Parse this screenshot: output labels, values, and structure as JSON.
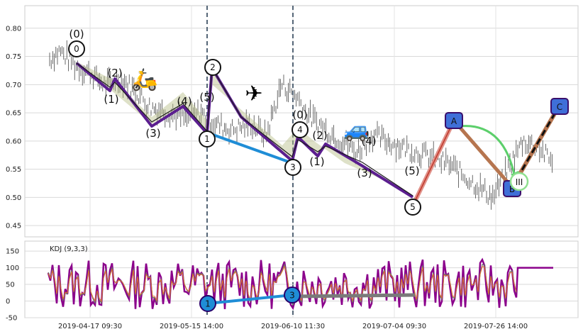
{
  "chart_data": {
    "type": "line",
    "main_panel": {
      "ylim": [
        0.43,
        0.84
      ],
      "y_ticks": [
        "0.45",
        "0.50",
        "0.55",
        "0.60",
        "0.65",
        "0.70",
        "0.75",
        "0.80"
      ],
      "grid": true,
      "price_bars": [
        {
          "x": 0.0,
          "y": 0.745
        },
        {
          "x": 0.02,
          "y": 0.76
        },
        {
          "x": 0.05,
          "y": 0.735
        },
        {
          "x": 0.08,
          "y": 0.72
        },
        {
          "x": 0.11,
          "y": 0.7
        },
        {
          "x": 0.14,
          "y": 0.71
        },
        {
          "x": 0.17,
          "y": 0.69
        },
        {
          "x": 0.2,
          "y": 0.66
        },
        {
          "x": 0.24,
          "y": 0.65
        },
        {
          "x": 0.27,
          "y": 0.64
        },
        {
          "x": 0.3,
          "y": 0.65
        },
        {
          "x": 0.33,
          "y": 0.63
        },
        {
          "x": 0.36,
          "y": 0.62
        },
        {
          "x": 0.4,
          "y": 0.63
        },
        {
          "x": 0.43,
          "y": 0.61
        },
        {
          "x": 0.46,
          "y": 0.7
        },
        {
          "x": 0.49,
          "y": 0.68
        },
        {
          "x": 0.52,
          "y": 0.64
        },
        {
          "x": 0.55,
          "y": 0.62
        },
        {
          "x": 0.58,
          "y": 0.6
        },
        {
          "x": 0.61,
          "y": 0.58
        },
        {
          "x": 0.64,
          "y": 0.61
        },
        {
          "x": 0.67,
          "y": 0.6
        },
        {
          "x": 0.7,
          "y": 0.59
        },
        {
          "x": 0.73,
          "y": 0.58
        },
        {
          "x": 0.76,
          "y": 0.57
        },
        {
          "x": 0.79,
          "y": 0.56
        },
        {
          "x": 0.82,
          "y": 0.54
        },
        {
          "x": 0.85,
          "y": 0.52
        },
        {
          "x": 0.88,
          "y": 0.5
        },
        {
          "x": 0.91,
          "y": 0.55
        },
        {
          "x": 0.94,
          "y": 0.6
        },
        {
          "x": 0.97,
          "y": 0.59
        },
        {
          "x": 1.0,
          "y": 0.56
        }
      ],
      "wave_markers": [
        {
          "label": "0",
          "x": 0.0,
          "y": 0.766,
          "top_label": "(0)"
        },
        {
          "label": "1",
          "x": 0.3,
          "y": 0.609
        },
        {
          "label": "2",
          "x": 0.31,
          "y": 0.733
        },
        {
          "label": "3",
          "x": 0.49,
          "y": 0.558
        },
        {
          "label": "4",
          "x": 0.505,
          "y": 0.623,
          "top_label": "(0)"
        },
        {
          "label": "5",
          "x": 0.74,
          "y": 0.488
        }
      ],
      "sub_wave_labels": [
        {
          "label": "(2)",
          "x": 0.08,
          "y": 0.71
        },
        {
          "label": "(1)",
          "x": 0.07,
          "y": 0.678
        },
        {
          "label": "(3)",
          "x": 0.155,
          "y": 0.613
        },
        {
          "label": "(4)",
          "x": 0.23,
          "y": 0.66
        },
        {
          "label": "(5)",
          "x": 0.275,
          "y": 0.68
        },
        {
          "label": "(2)",
          "x": 0.55,
          "y": 0.61
        },
        {
          "label": "(1)",
          "x": 0.535,
          "y": 0.578
        },
        {
          "label": "(4)",
          "x": 0.645,
          "y": 0.6
        },
        {
          "label": "(3)",
          "x": 0.63,
          "y": 0.548
        },
        {
          "label": "(5)",
          "x": 0.735,
          "y": 0.545
        }
      ],
      "abc_markers": [
        {
          "label": "A",
          "x": 0.815,
          "y": 0.638
        },
        {
          "label": "B",
          "x": 0.9,
          "y": 0.52
        },
        {
          "label": "C",
          "x": 0.985,
          "y": 0.665
        }
      ],
      "roman_marker": {
        "label": "III",
        "x": 0.9,
        "y": 0.533
      },
      "emojis": [
        {
          "glyph": "🛵",
          "x": 0.14,
          "y": 0.71
        },
        {
          "glyph": "✈",
          "x": 0.42,
          "y": 0.688
        },
        {
          "glyph": "🚙",
          "x": 0.63,
          "y": 0.628
        }
      ]
    },
    "kdj_panel": {
      "title": "KDJ (9,3,3)",
      "ylim": [
        -50,
        180
      ],
      "y_ticks": [
        "-50",
        "0",
        "50",
        "100",
        "150"
      ],
      "markers": [
        {
          "label": "1",
          "x": 0.3,
          "y": -10
        },
        {
          "label": "3",
          "x": 0.49,
          "y": 15
        }
      ]
    },
    "x_ticks": [
      "2019-04-17 09:30",
      "2019-05-15 14:00",
      "2019-06-10 11:30",
      "2019-07-04 09:30",
      "2019-07-26 14:00"
    ]
  }
}
